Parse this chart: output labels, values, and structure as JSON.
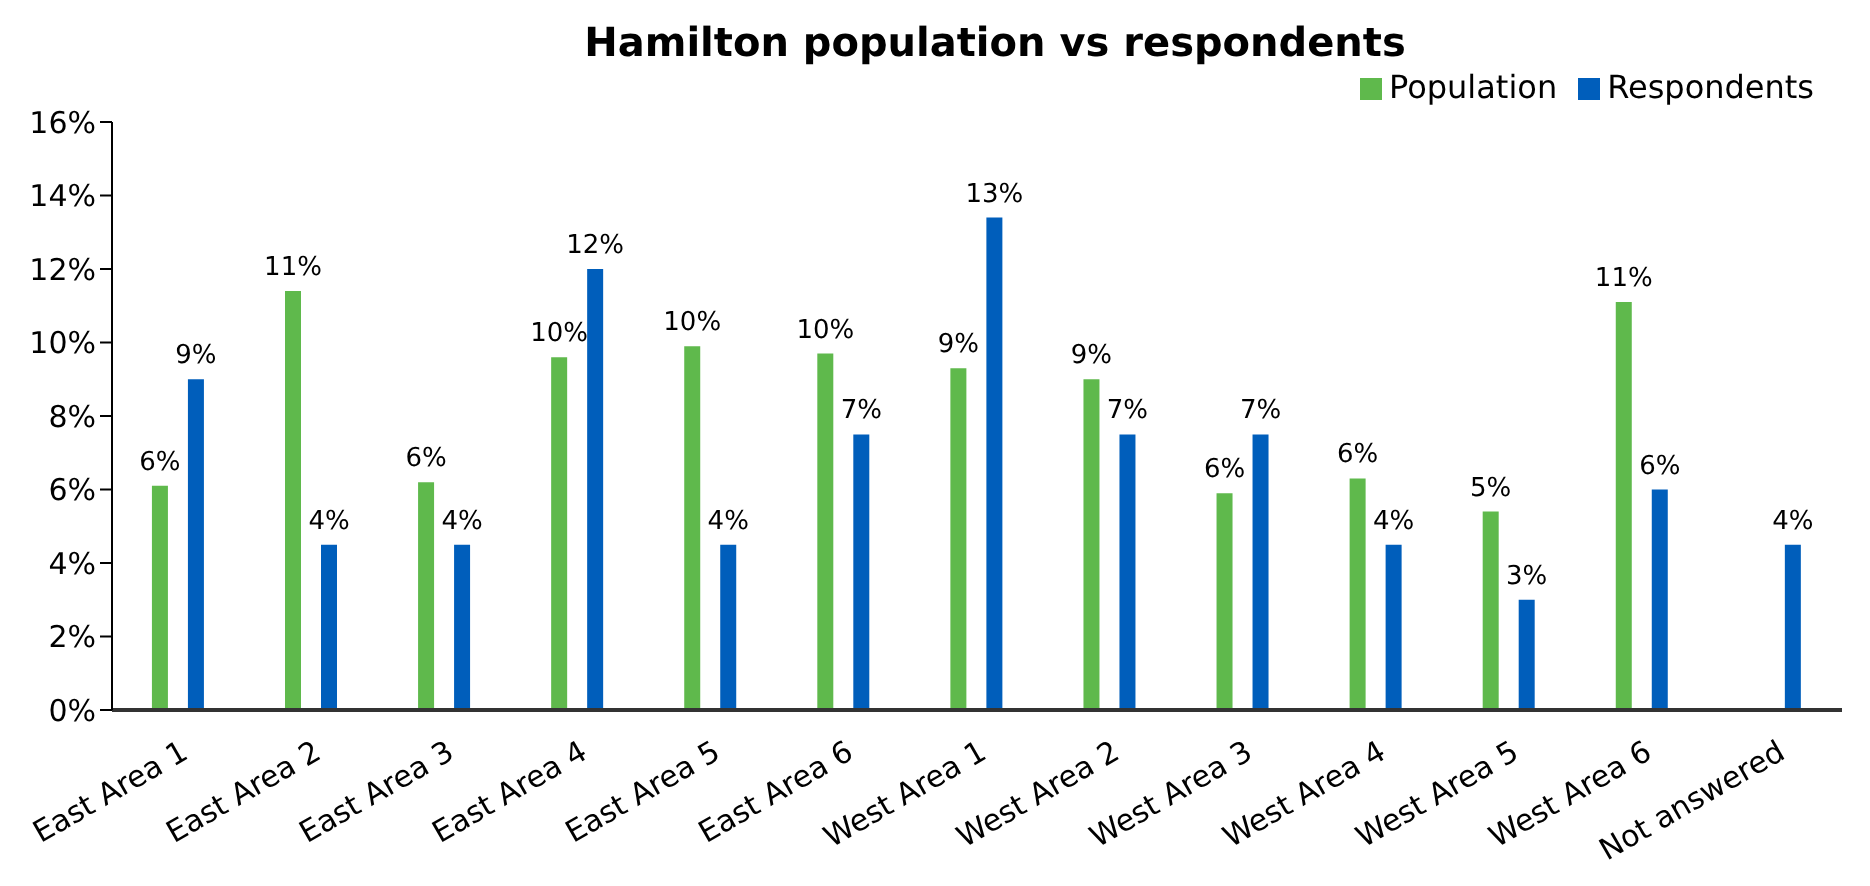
{
  "chart_data": {
    "type": "bar",
    "title": "Hamilton population vs respondents",
    "categories": [
      "East Area 1",
      "East Area 2",
      "East Area 3",
      "East Area 4",
      "East Area 5",
      "East Area 6",
      "West Area 1",
      "West Area 2",
      "West Area 3",
      "West Area 4",
      "West Area 5",
      "West Area 6",
      "Not answered"
    ],
    "series": [
      {
        "name": "Population",
        "color": "#5fb94c",
        "values": [
          6.1,
          11.4,
          6.2,
          9.6,
          9.9,
          9.7,
          9.3,
          9.0,
          5.9,
          6.3,
          5.4,
          11.1,
          null
        ],
        "value_labels": [
          "6%",
          "11%",
          "6%",
          "10%",
          "10%",
          "10%",
          "9%",
          "9%",
          "6%",
          "6%",
          "5%",
          "11%",
          null
        ]
      },
      {
        "name": "Respondents",
        "color": "#005ebb",
        "values": [
          9.0,
          4.5,
          4.5,
          12.0,
          4.5,
          7.5,
          13.4,
          7.5,
          7.5,
          4.5,
          3.0,
          6.0,
          4.5
        ],
        "value_labels": [
          "9%",
          "4%",
          "4%",
          "12%",
          "4%",
          "7%",
          "13%",
          "7%",
          "7%",
          "4%",
          "3%",
          "6%",
          "4%"
        ]
      }
    ],
    "ylim": [
      0,
      16
    ],
    "yticks": [
      {
        "value": 0,
        "label": "0%"
      },
      {
        "value": 2,
        "label": "2%"
      },
      {
        "value": 4,
        "label": "4%"
      },
      {
        "value": 6,
        "label": "6%"
      },
      {
        "value": 8,
        "label": "8%"
      },
      {
        "value": 10,
        "label": "10%"
      },
      {
        "value": 12,
        "label": "12%"
      },
      {
        "value": 14,
        "label": "14%"
      },
      {
        "value": 16,
        "label": "16%"
      }
    ],
    "grid": false,
    "legend": "top right"
  }
}
